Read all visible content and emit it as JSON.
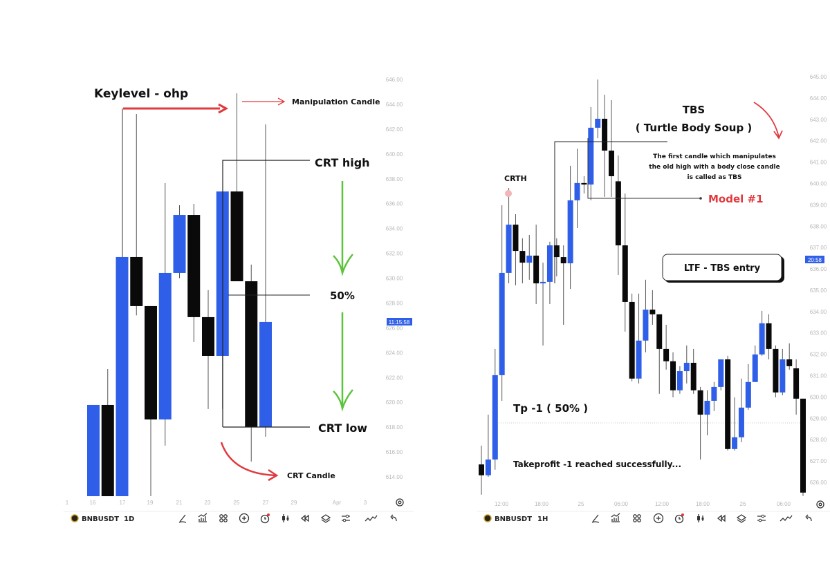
{
  "colors": {
    "bull": "#2f5fe8",
    "bear": "#0a0a0a",
    "annotation_red": "#e0393e",
    "arrow_green": "#5cc43a",
    "price_label": "#2f5fe8"
  },
  "chart_data": [
    {
      "type": "candlestick",
      "symbol": "BNBUSDT",
      "timeframe": "1D",
      "ylim": [
        612,
        647
      ],
      "y_ticks": [
        "646.00",
        "644.00",
        "642.00",
        "640.00",
        "638.00",
        "636.00",
        "634.00",
        "632.00",
        "630.00",
        "628.00",
        "626.00",
        "624.00",
        "622.00",
        "620.00",
        "618.00",
        "616.00",
        "614.00"
      ],
      "x_ticks": [
        "1",
        "16",
        "17",
        "19",
        "21",
        "23",
        "25",
        "27",
        "29",
        "Apr",
        "3"
      ],
      "price_label": "11:15:58",
      "candles": [
        {
          "o": 612.44,
          "h": 619.79,
          "l": 612.44,
          "c": 619.79
        },
        {
          "o": 619.79,
          "h": 622.68,
          "l": 612.44,
          "c": 612.44
        },
        {
          "o": 612.44,
          "h": 631.7,
          "l": 612.44,
          "c": 631.7
        },
        {
          "o": 631.7,
          "h": 643.22,
          "l": 627.0,
          "c": 627.75
        },
        {
          "o": 627.75,
          "h": 627.75,
          "l": 612.44,
          "c": 618.62
        },
        {
          "o": 618.62,
          "h": 637.65,
          "l": 616.51,
          "c": 630.42
        },
        {
          "o": 630.42,
          "h": 635.87,
          "l": 630.0,
          "c": 635.09
        },
        {
          "o": 635.09,
          "h": 635.98,
          "l": 624.85,
          "c": 626.86
        },
        {
          "o": 626.86,
          "h": 629.03,
          "l": 619.46,
          "c": 623.74
        },
        {
          "o": 623.74,
          "h": 636.98,
          "l": 619.46,
          "c": 636.98
        },
        {
          "o": 636.98,
          "h": 644.89,
          "l": 629.75,
          "c": 629.75
        },
        {
          "o": 629.75,
          "h": 631.09,
          "l": 615.23,
          "c": 618.01
        },
        {
          "o": 618.01,
          "h": 642.38,
          "l": 617.23,
          "c": 626.47
        }
      ],
      "annotations": {
        "keylevel": "Keylevel - ohp",
        "manipulation": "Manipulation Candle",
        "crt_high": "CRT high",
        "fifty": "50%",
        "crt_low": "CRT low",
        "crt_candle": "CRT Candle"
      }
    },
    {
      "type": "candlestick",
      "symbol": "BNBUSDT",
      "timeframe": "1H",
      "ylim": [
        625,
        645.2
      ],
      "y_ticks": [
        "645.00",
        "644.00",
        "643.00",
        "642.00",
        "641.00",
        "640.00",
        "639.00",
        "638.00",
        "637.00",
        "636.00",
        "635.00",
        "634.00",
        "633.00",
        "632.00",
        "631.00",
        "630.00",
        "629.00",
        "628.00",
        "627.00",
        "626.00"
      ],
      "x_ticks": [
        "12:00",
        "18:00",
        "25",
        "06:00",
        "12:00",
        "18:00",
        "26",
        "06:00"
      ],
      "price_label": "20:58",
      "candles": [
        {
          "o": 626.84,
          "h": 627.72,
          "l": 625.42,
          "c": 626.33
        },
        {
          "o": 626.33,
          "h": 629.17,
          "l": 626.26,
          "c": 627.07
        },
        {
          "o": 627.07,
          "h": 632.25,
          "l": 626.59,
          "c": 631.02
        },
        {
          "o": 631.02,
          "h": 638.98,
          "l": 629.82,
          "c": 635.81
        },
        {
          "o": 635.81,
          "h": 639.79,
          "l": 635.32,
          "c": 638.07
        },
        {
          "o": 638.07,
          "h": 638.56,
          "l": 635.23,
          "c": 636.84
        },
        {
          "o": 636.84,
          "h": 637.43,
          "l": 635.32,
          "c": 636.29
        },
        {
          "o": 636.29,
          "h": 637.59,
          "l": 635.49,
          "c": 636.62
        },
        {
          "o": 636.62,
          "h": 638.07,
          "l": 634.35,
          "c": 635.32
        },
        {
          "o": 635.32,
          "h": 636.29,
          "l": 632.41,
          "c": 635.39
        },
        {
          "o": 635.39,
          "h": 637.27,
          "l": 634.35,
          "c": 637.1
        },
        {
          "o": 637.1,
          "h": 637.43,
          "l": 635.65,
          "c": 636.55
        },
        {
          "o": 636.55,
          "h": 637.1,
          "l": 633.38,
          "c": 636.26
        },
        {
          "o": 636.26,
          "h": 640.83,
          "l": 635.06,
          "c": 639.21
        },
        {
          "o": 639.21,
          "h": 641.63,
          "l": 637.91,
          "c": 640.02
        },
        {
          "o": 640.02,
          "h": 640.34,
          "l": 639.53,
          "c": 639.95
        },
        {
          "o": 639.95,
          "h": 643.58,
          "l": 639.21,
          "c": 642.61
        },
        {
          "o": 642.61,
          "h": 644.87,
          "l": 642.12,
          "c": 643.03
        },
        {
          "o": 643.03,
          "h": 644.16,
          "l": 639.37,
          "c": 641.54
        },
        {
          "o": 641.54,
          "h": 643.9,
          "l": 639.37,
          "c": 640.34
        },
        {
          "o": 640.1,
          "h": 641.31,
          "l": 635.71,
          "c": 637.1
        },
        {
          "o": 637.1,
          "h": 639.53,
          "l": 633.06,
          "c": 634.45
        },
        {
          "o": 634.45,
          "h": 634.84,
          "l": 630.73,
          "c": 630.86
        },
        {
          "o": 630.86,
          "h": 634.84,
          "l": 630.63,
          "c": 632.64
        },
        {
          "o": 632.64,
          "h": 635.49,
          "l": 632.09,
          "c": 634.09
        },
        {
          "o": 634.09,
          "h": 635.0,
          "l": 633.38,
          "c": 633.87
        },
        {
          "o": 633.87,
          "h": 633.87,
          "l": 630.15,
          "c": 632.25
        },
        {
          "o": 632.25,
          "h": 633.38,
          "l": 631.28,
          "c": 631.67
        },
        {
          "o": 631.67,
          "h": 632.09,
          "l": 629.98,
          "c": 630.31
        },
        {
          "o": 630.31,
          "h": 631.44,
          "l": 630.15,
          "c": 631.21
        },
        {
          "o": 631.21,
          "h": 632.41,
          "l": 630.63,
          "c": 631.6
        },
        {
          "o": 631.6,
          "h": 632.25,
          "l": 630.15,
          "c": 630.31
        },
        {
          "o": 630.31,
          "h": 630.47,
          "l": 627.07,
          "c": 629.17
        },
        {
          "o": 629.17,
          "h": 630.31,
          "l": 628.2,
          "c": 629.82
        },
        {
          "o": 629.82,
          "h": 630.7,
          "l": 629.34,
          "c": 630.47
        },
        {
          "o": 630.47,
          "h": 631.76,
          "l": 630.31,
          "c": 631.76
        },
        {
          "o": 631.76,
          "h": 631.93,
          "l": 627.49,
          "c": 627.56
        },
        {
          "o": 627.56,
          "h": 629.98,
          "l": 627.49,
          "c": 628.11
        },
        {
          "o": 628.11,
          "h": 630.86,
          "l": 627.88,
          "c": 629.5
        },
        {
          "o": 629.5,
          "h": 631.54,
          "l": 629.4,
          "c": 630.7
        },
        {
          "o": 630.7,
          "h": 632.41,
          "l": 630.7,
          "c": 631.99
        },
        {
          "o": 631.99,
          "h": 634.03,
          "l": 631.93,
          "c": 633.45
        },
        {
          "o": 633.45,
          "h": 633.87,
          "l": 631.76,
          "c": 632.25
        },
        {
          "o": 632.25,
          "h": 632.41,
          "l": 629.98,
          "c": 630.21
        },
        {
          "o": 630.21,
          "h": 632.25,
          "l": 630.08,
          "c": 631.76
        },
        {
          "o": 631.76,
          "h": 632.51,
          "l": 631.28,
          "c": 631.44
        },
        {
          "o": 631.34,
          "h": 631.76,
          "l": 629.17,
          "c": 629.92
        },
        {
          "o": 629.92,
          "h": 629.92,
          "l": 625.36,
          "c": 625.52
        }
      ],
      "annotations": {
        "tbs": "TBS",
        "tbs_full": "( Turtle Body Soup )",
        "desc_1": "The first candle which manipulates",
        "desc_2": "the old high with a body close candle",
        "desc_3": "is called as TBS",
        "model": "Model #1",
        "crth": "CRTH",
        "ltf_entry": "LTF - TBS entry",
        "tp": "Tp -1 ( 50% )",
        "takeprofit": "Takeprofit -1 reached successfully..."
      }
    }
  ],
  "toolbars": [
    {
      "symbol": "BNBUSDT",
      "timeframe": "1D"
    },
    {
      "symbol": "BNBUSDT",
      "timeframe": "1H"
    }
  ],
  "toolbar_icons": [
    "pen-icon",
    "indicators-icon",
    "templates-icon",
    "add-icon",
    "alert-icon",
    "candles-icon",
    "replay-icon",
    "layers-icon",
    "settings-icon",
    "compare-icon",
    "undo-icon"
  ]
}
